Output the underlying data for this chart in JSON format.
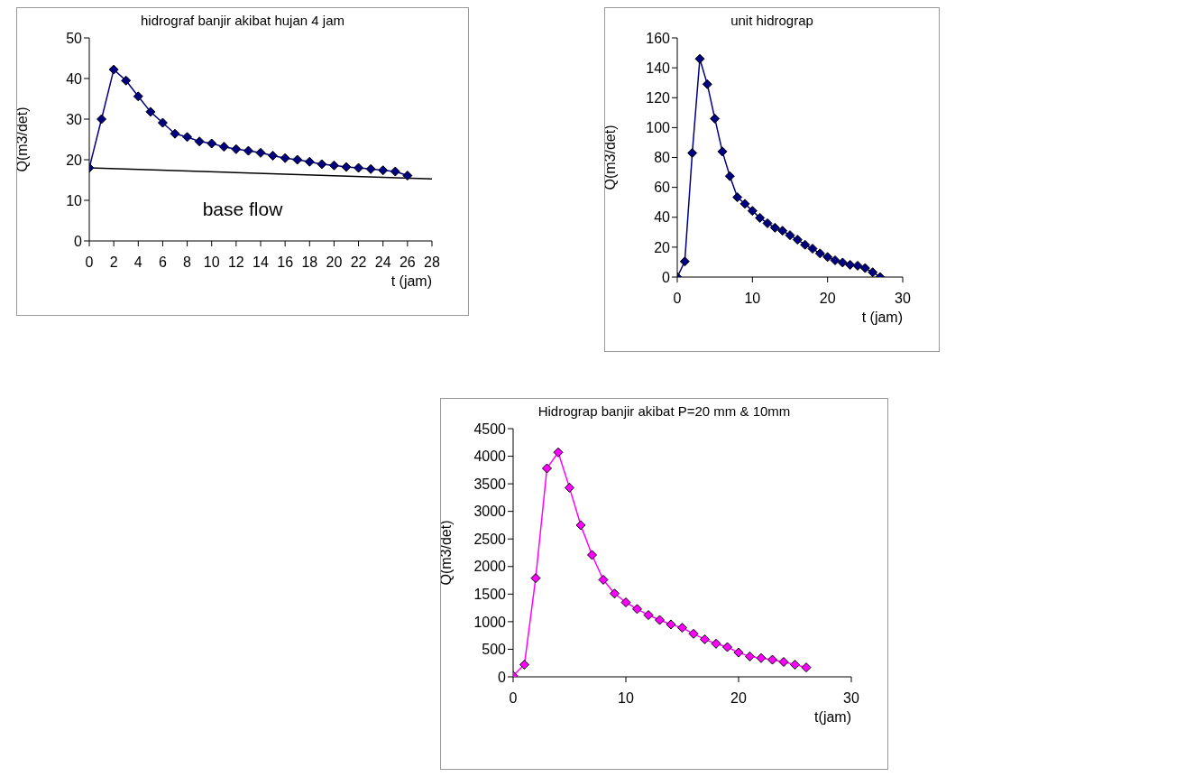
{
  "chart_data": [
    {
      "type": "line",
      "title": "hidrograf banjir akibat hujan 4 jam",
      "xlabel": "t (jam)",
      "ylabel": "Q(m3/det)",
      "xlim": [
        0,
        28
      ],
      "xticks": [
        0,
        2,
        4,
        6,
        8,
        10,
        12,
        14,
        16,
        18,
        20,
        22,
        24,
        26,
        28
      ],
      "ylim": [
        0,
        50
      ],
      "yticks": [
        0,
        10,
        20,
        30,
        40,
        50
      ],
      "marker": "diamond",
      "series": [
        {
          "color": "#000080",
          "x": [
            0,
            1,
            2,
            3,
            4,
            5,
            6,
            7,
            8,
            9,
            10,
            11,
            12,
            13,
            14,
            15,
            16,
            17,
            18,
            19,
            20,
            21,
            22,
            23,
            24,
            25,
            26
          ],
          "values": [
            18,
            30,
            42.2,
            39.5,
            35.6,
            31.8,
            29.1,
            26.4,
            25.6,
            24.5,
            24,
            23.2,
            22.6,
            22.2,
            21.7,
            21,
            20.4,
            20,
            19.5,
            18.9,
            18.6,
            18.2,
            18,
            17.7,
            17.4,
            17.1,
            16.1
          ]
        },
        {
          "type": "line",
          "color": "#000000",
          "marker": "none",
          "x": [
            0,
            28
          ],
          "values": [
            18,
            15.3
          ]
        }
      ],
      "annotations": [
        "base flow"
      ]
    },
    {
      "type": "line",
      "title": "unit hidrograp",
      "xlabel": "t (jam)",
      "ylabel": "Q(m3/det)",
      "xlim": [
        0,
        30
      ],
      "xticks": [
        0,
        10,
        20,
        30
      ],
      "ylim": [
        0,
        160
      ],
      "yticks": [
        0,
        20,
        40,
        60,
        80,
        100,
        120,
        140,
        160
      ],
      "marker": "diamond",
      "series": [
        {
          "color": "#000080",
          "x": [
            0,
            1,
            2,
            3,
            4,
            5,
            6,
            7,
            8,
            9,
            10,
            11,
            12,
            13,
            14,
            15,
            16,
            17,
            18,
            19,
            20,
            21,
            22,
            23,
            24,
            25,
            26,
            27
          ],
          "values": [
            0,
            10.4,
            83,
            146,
            129,
            106,
            84,
            67.5,
            53.4,
            49,
            44.3,
            39.6,
            36,
            33,
            31,
            28,
            25,
            21.6,
            19,
            15.8,
            13.4,
            11.2,
            9.7,
            8.2,
            7.6,
            6,
            3.2,
            0
          ]
        }
      ]
    },
    {
      "type": "line",
      "title": "Hidrograp banjir akibat P=20 mm & 10mm",
      "xlabel": "t(jam)",
      "ylabel": "Q(m3/det)",
      "xlim": [
        0,
        30
      ],
      "xticks": [
        0,
        10,
        20,
        30
      ],
      "ylim": [
        0,
        4500
      ],
      "yticks": [
        0,
        500,
        1000,
        1500,
        2000,
        2500,
        3000,
        3500,
        4000,
        4500
      ],
      "marker": "diamond",
      "series": [
        {
          "color": "#ff00ff",
          "x": [
            0,
            1,
            2,
            3,
            4,
            5,
            6,
            7,
            8,
            9,
            10,
            11,
            12,
            13,
            14,
            15,
            16,
            17,
            18,
            19,
            20,
            21,
            22,
            23,
            24,
            25,
            26
          ],
          "values": [
            20,
            220,
            1790,
            3780,
            4070,
            3430,
            2750,
            2210,
            1760,
            1510,
            1350,
            1230,
            1120,
            1030,
            950,
            890,
            780,
            680,
            600,
            540,
            440,
            370,
            340,
            310,
            270,
            220,
            170
          ]
        }
      ]
    }
  ]
}
